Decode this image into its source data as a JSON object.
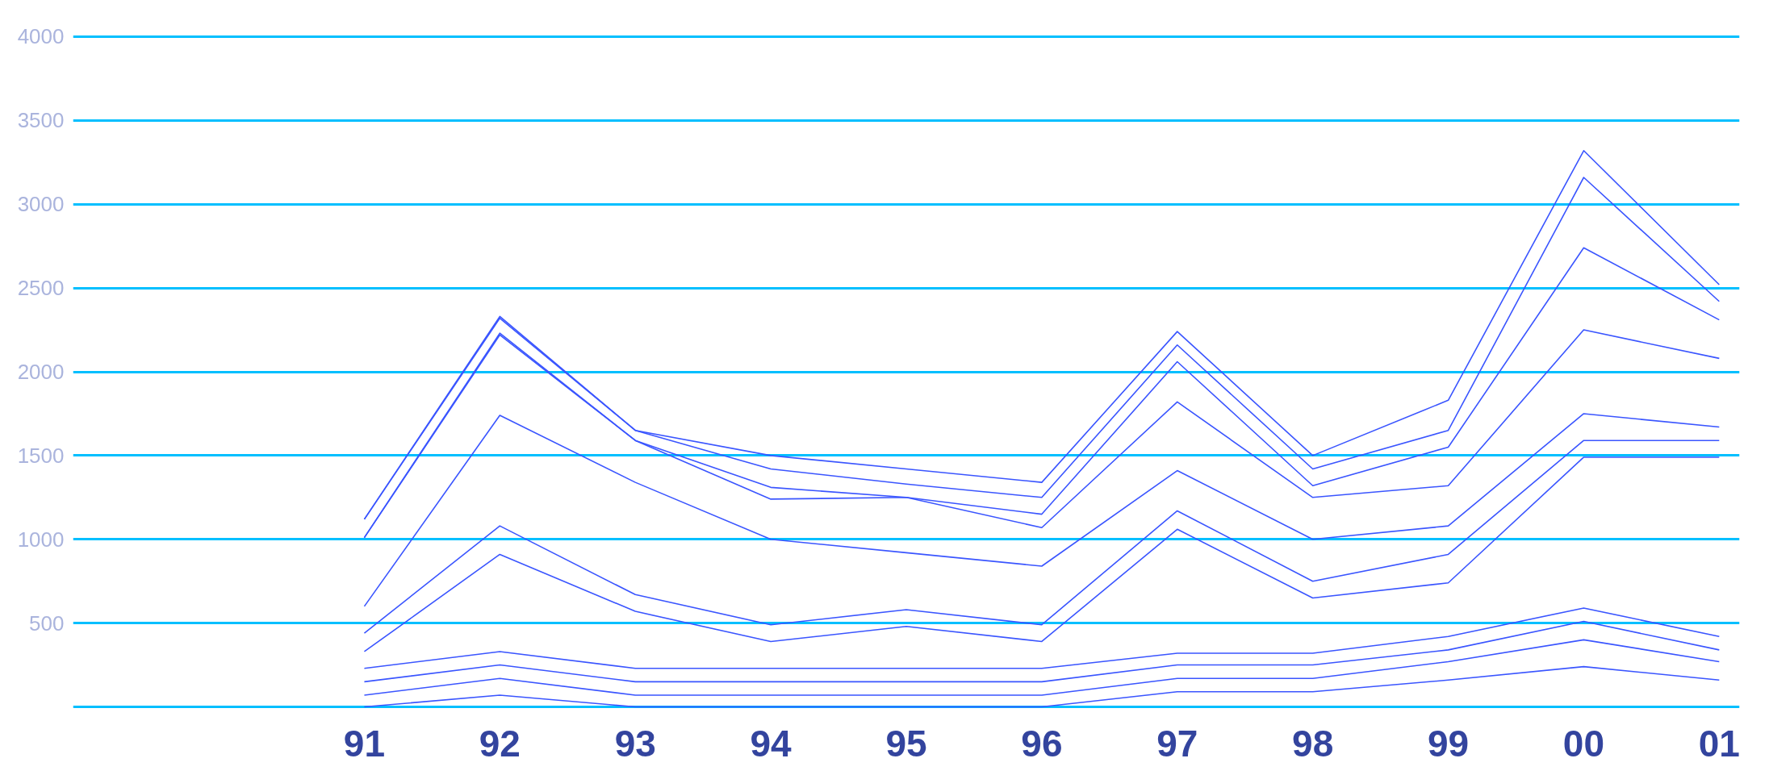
{
  "chart_data": {
    "type": "line",
    "categories": [
      "91",
      "92",
      "93",
      "94",
      "95",
      "96",
      "97",
      "98",
      "99",
      "00",
      "01"
    ],
    "series": [
      {
        "color": "#3a55ff",
        "values": [
          1120,
          2330,
          1650,
          1500,
          1420,
          1340,
          2240,
          1500,
          1830,
          3320,
          2520
        ]
      },
      {
        "color": "#3a55ff",
        "values": [
          1120,
          2320,
          1650,
          1420,
          1330,
          1250,
          2160,
          1420,
          1650,
          3160,
          2420
        ]
      },
      {
        "color": "#3a55ff",
        "values": [
          1010,
          2230,
          1590,
          1310,
          1250,
          1150,
          2060,
          1320,
          1550,
          2740,
          2310
        ]
      },
      {
        "color": "#3a55ff",
        "values": [
          1010,
          2220,
          1590,
          1240,
          1250,
          1070,
          1820,
          1250,
          1320,
          2250,
          2080
        ]
      },
      {
        "color": "#3a55ff",
        "values": [
          600,
          1740,
          1340,
          1000,
          920,
          840,
          1410,
          1000,
          1080,
          1750,
          1670
        ]
      },
      {
        "color": "#3a55ff",
        "values": [
          440,
          1080,
          670,
          490,
          580,
          490,
          1170,
          750,
          910,
          1590,
          1590
        ]
      },
      {
        "color": "#3a55ff",
        "values": [
          330,
          910,
          570,
          390,
          480,
          390,
          1060,
          650,
          740,
          1490,
          1490
        ]
      },
      {
        "color": "#3a55ff",
        "values": [
          230,
          330,
          230,
          230,
          230,
          230,
          320,
          320,
          420,
          590,
          420
        ]
      },
      {
        "color": "#3a55ff",
        "values": [
          150,
          250,
          150,
          150,
          150,
          150,
          250,
          250,
          340,
          510,
          340
        ]
      },
      {
        "color": "#3a55ff",
        "values": [
          70,
          170,
          70,
          70,
          70,
          70,
          170,
          170,
          270,
          400,
          270
        ]
      },
      {
        "color": "#3a55ff",
        "values": [
          0,
          70,
          0,
          0,
          0,
          0,
          90,
          90,
          160,
          240,
          160
        ]
      }
    ],
    "ylim": [
      0,
      4000
    ],
    "yticks": [
      {
        "value": 0,
        "label": null
      },
      500,
      1000,
      1500,
      2000,
      2500,
      3000,
      3500,
      4000
    ],
    "grid": "y",
    "marker": "none",
    "line_style": "solid"
  }
}
